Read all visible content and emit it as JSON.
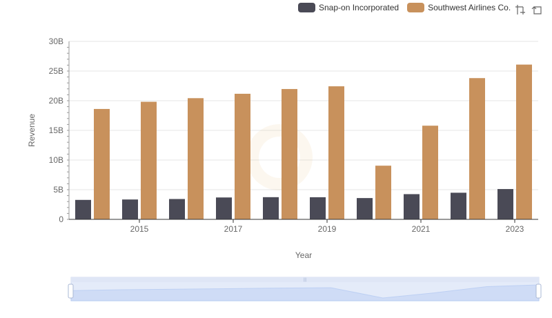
{
  "legend": {
    "items": [
      {
        "name": "Snap-on Incorporated",
        "color": "#4a4a56"
      },
      {
        "name": "Southwest Airlines Co.",
        "color": "#c8915c"
      }
    ]
  },
  "toolbox": {
    "icons": [
      "zoom-icon",
      "restore-icon"
    ]
  },
  "chart_data": {
    "type": "bar",
    "xlabel": "Year",
    "ylabel": "Revenue",
    "categories": [
      "2014",
      "2015",
      "2016",
      "2017",
      "2018",
      "2019",
      "2020",
      "2021",
      "2022",
      "2023"
    ],
    "tick_labels": [
      "2015",
      "2017",
      "2019",
      "2021",
      "2023"
    ],
    "y_ticks": [
      "0",
      "5B",
      "10B",
      "15B",
      "20B",
      "25B",
      "30B"
    ],
    "ylim": [
      0,
      30000000000
    ],
    "grid": true,
    "legend_position": "top-right",
    "series": [
      {
        "name": "Snap-on Incorporated",
        "color": "#4a4a56",
        "values": [
          3280000000,
          3350000000,
          3430000000,
          3690000000,
          3740000000,
          3730000000,
          3590000000,
          4250000000,
          4490000000,
          5110000000
        ]
      },
      {
        "name": "Southwest Airlines Co.",
        "color": "#c8915c",
        "values": [
          18610000000,
          19820000000,
          20430000000,
          21170000000,
          21970000000,
          22430000000,
          9050000000,
          15790000000,
          23810000000,
          26090000000
        ]
      }
    ]
  }
}
